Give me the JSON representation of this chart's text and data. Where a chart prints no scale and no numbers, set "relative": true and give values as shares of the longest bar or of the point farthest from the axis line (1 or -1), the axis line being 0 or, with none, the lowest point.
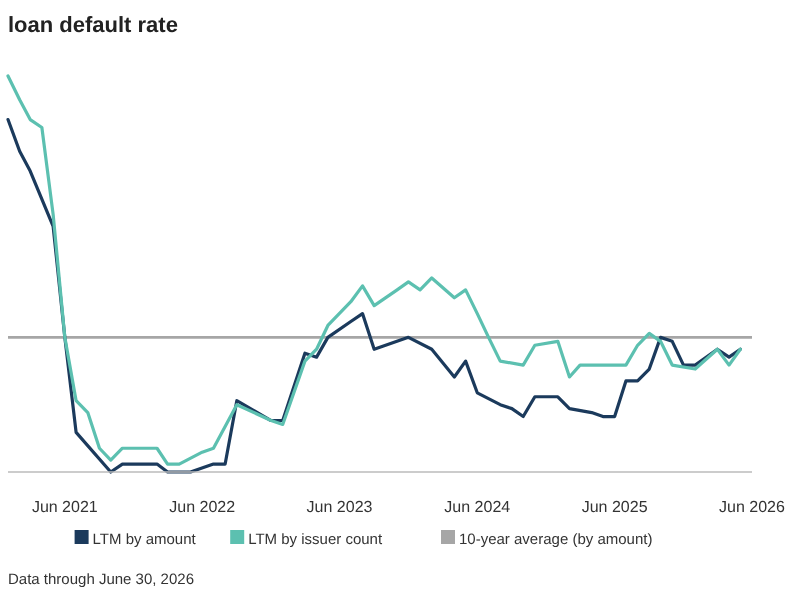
{
  "chart_data": {
    "type": "line",
    "title": "loan default rate",
    "relative": true,
    "legend": "bottom",
    "grid": false,
    "annotations": [
      "Data through June 30, 2026"
    ],
    "xlim": [
      "2021-01",
      "2026-06"
    ],
    "xticks": [
      {
        "value": "2021-06",
        "label": "Jun 2021"
      },
      {
        "value": "2022-06",
        "label": "Jun 2022"
      },
      {
        "value": "2023-06",
        "label": "Jun 2023"
      },
      {
        "value": "2024-06",
        "label": "Jun 2024"
      },
      {
        "value": "2025-06",
        "label": "Jun 2025"
      },
      {
        "value": "2026-06",
        "label": "Jun 2026"
      }
    ],
    "ref_lines": [
      {
        "axis": "y",
        "value": 0.34,
        "label": "10-year average (by amount)",
        "color": "#a6a6a6"
      }
    ],
    "series": [
      {
        "name": "LTM by amount",
        "color": "#1b3a5c",
        "x": [
          "2021-01",
          "2021-02",
          "2021-03",
          "2021-05",
          "2021-06",
          "2021-07",
          "2021-10",
          "2021-11",
          "2022-02",
          "2022-03",
          "2022-05",
          "2022-07",
          "2022-08",
          "2022-09",
          "2022-12",
          "2023-01",
          "2023-03",
          "2023-04",
          "2023-05",
          "2023-07",
          "2023-08",
          "2023-09",
          "2023-12",
          "2024-02",
          "2024-04",
          "2024-05",
          "2024-06",
          "2024-08",
          "2024-09",
          "2024-10",
          "2024-11",
          "2025-01",
          "2025-02",
          "2025-04",
          "2025-05",
          "2025-06",
          "2025-07",
          "2025-08",
          "2025-09",
          "2025-10",
          "2025-11",
          "2025-12",
          "2026-01",
          "2026-03",
          "2026-04",
          "2026-05"
        ],
        "values": [
          0.89,
          0.81,
          0.76,
          0.62,
          0.34,
          0.1,
          0,
          0.02,
          0.02,
          0,
          0,
          0.02,
          0.02,
          0.18,
          0.13,
          0.13,
          0.3,
          0.29,
          0.34,
          0.38,
          0.4,
          0.31,
          0.34,
          0.31,
          0.24,
          0.28,
          0.2,
          0.17,
          0.16,
          0.14,
          0.19,
          0.19,
          0.16,
          0.15,
          0.14,
          0.14,
          0.23,
          0.23,
          0.26,
          0.34,
          0.33,
          0.27,
          0.27,
          0.31,
          0.29,
          0.31
        ]
      },
      {
        "name": "LTM by issuer count",
        "color": "#5cc0b0",
        "x": [
          "2021-01",
          "2021-02",
          "2021-03",
          "2021-04",
          "2021-05",
          "2021-06",
          "2021-07",
          "2021-08",
          "2021-09",
          "2021-10",
          "2021-11",
          "2022-02",
          "2022-03",
          "2022-04",
          "2022-06",
          "2022-07",
          "2022-09",
          "2022-12",
          "2023-01",
          "2023-03",
          "2023-04",
          "2023-05",
          "2023-07",
          "2023-08",
          "2023-09",
          "2023-11",
          "2023-12",
          "2024-01",
          "2024-02",
          "2024-04",
          "2024-05",
          "2024-06",
          "2024-07",
          "2024-08",
          "2024-10",
          "2024-11",
          "2025-01",
          "2025-02",
          "2025-03",
          "2025-07",
          "2025-08",
          "2025-09",
          "2025-10",
          "2025-11",
          "2026-01",
          "2026-03",
          "2026-04",
          "2026-05"
        ],
        "values": [
          1,
          0.94,
          0.89,
          0.87,
          0.65,
          0.34,
          0.18,
          0.15,
          0.06,
          0.03,
          0.06,
          0.06,
          0.02,
          0.02,
          0.05,
          0.06,
          0.17,
          0.13,
          0.12,
          0.28,
          0.31,
          0.37,
          0.43,
          0.47,
          0.42,
          0.46,
          0.48,
          0.46,
          0.49,
          0.44,
          0.46,
          0.4,
          0.34,
          0.28,
          0.27,
          0.32,
          0.33,
          0.24,
          0.27,
          0.27,
          0.32,
          0.35,
          0.33,
          0.27,
          0.26,
          0.31,
          0.27,
          0.31
        ]
      }
    ]
  }
}
